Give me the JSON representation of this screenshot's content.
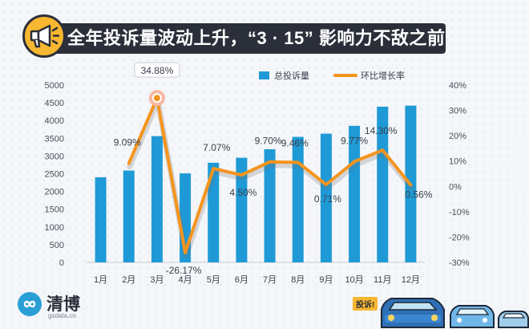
{
  "title": "全年投诉量波动上升，“3 · 15” 影响力不敌之前",
  "logo": {
    "name": "清博",
    "sub": "gsdata.cn"
  },
  "tag": "投诉!",
  "chart_data": {
    "type": "bar+line",
    "categories": [
      "1月",
      "2月",
      "3月",
      "4月",
      "5月",
      "6月",
      "7月",
      "8月",
      "9月",
      "10月",
      "11月",
      "12月"
    ],
    "series": [
      {
        "name": "总投诉量",
        "type": "bar",
        "axis": "left",
        "color": "#1f9ad6",
        "values": [
          2400,
          2590,
          3560,
          2510,
          2810,
          2950,
          3190,
          3540,
          3630,
          3850,
          4390,
          4420
        ]
      },
      {
        "name": "环比增长率",
        "type": "line",
        "axis": "right",
        "color": "#f5941d",
        "values": [
          null,
          9.09,
          34.88,
          -26.17,
          7.07,
          4.5,
          9.7,
          9.46,
          0.71,
          9.77,
          14.3,
          0.56
        ],
        "labels": [
          "",
          "9.09%",
          "34.88%",
          "-26.17%",
          "7.07%",
          "4.50%",
          "9.70%",
          "9.46%",
          "0.71%",
          "9.77%",
          "14.30%",
          "0.56%"
        ]
      }
    ],
    "y_left": {
      "min": 0,
      "max": 5000,
      "ticks": [
        "0",
        "500",
        "1000",
        "1500",
        "2000",
        "2500",
        "3000",
        "3500",
        "4000",
        "4500",
        "5000"
      ]
    },
    "y_right": {
      "min": -30,
      "max": 40,
      "ticks": [
        "-30%",
        "-20%",
        "-10%",
        "0%",
        "10%",
        "20%",
        "30%",
        "40%"
      ]
    },
    "legend_position": "top-right",
    "highlight_index": 2
  }
}
